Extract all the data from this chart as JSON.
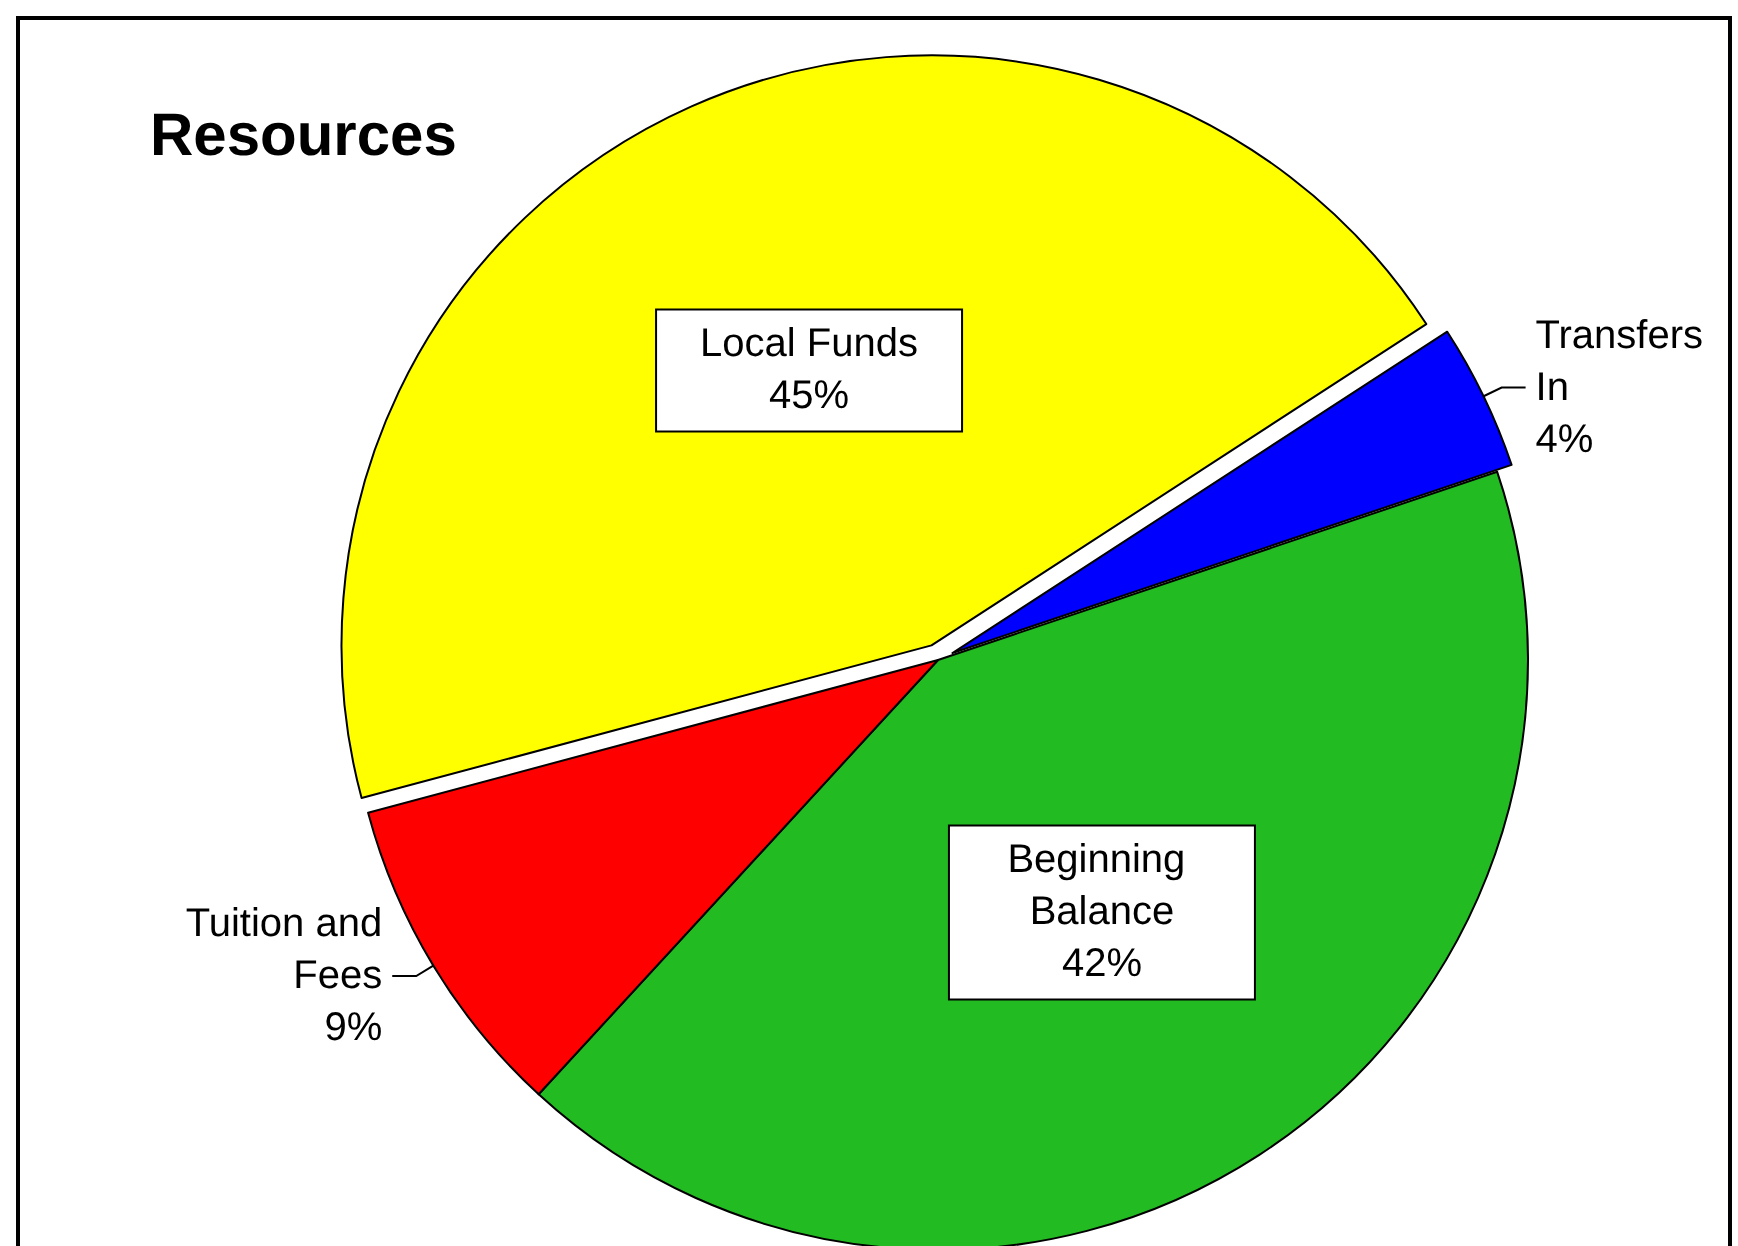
{
  "chart_data": {
    "type": "pie",
    "title": "Resources",
    "categories": [
      "Local Funds",
      "Transfers In",
      "Beginning Balance",
      "Tuition and Fees"
    ],
    "values": [
      45,
      4,
      42,
      9
    ],
    "colors": [
      "#ffff00",
      "#0000ff",
      "#22bb22",
      "#ff0000"
    ],
    "value_labels": [
      "45%",
      "4%",
      "42%",
      "9%"
    ],
    "legend": false
  }
}
